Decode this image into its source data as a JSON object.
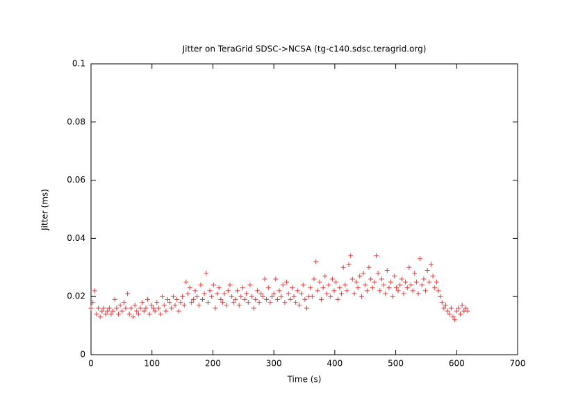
{
  "chart_data": {
    "type": "scatter",
    "title": "Jitter on TeraGrid SDSC->NCSA (tg-c140.sdsc.teragrid.org)",
    "xlabel": "Time (s)",
    "ylabel": "Jitter (ms)",
    "xlim": [
      0,
      700
    ],
    "xticks": [
      0,
      100,
      200,
      300,
      400,
      500,
      600,
      700
    ],
    "ylim": [
      0,
      0.1
    ],
    "yticks": [
      0,
      0.02,
      0.04,
      0.06,
      0.08,
      0.1
    ],
    "color": "#e03c3c",
    "marker": "+",
    "x": [
      0,
      3,
      6,
      9,
      12,
      15,
      18,
      21,
      24,
      27,
      30,
      33,
      36,
      39,
      42,
      45,
      48,
      51,
      54,
      57,
      60,
      63,
      66,
      69,
      72,
      75,
      78,
      81,
      84,
      87,
      90,
      93,
      96,
      99,
      102,
      105,
      108,
      111,
      114,
      117,
      120,
      123,
      126,
      129,
      132,
      135,
      138,
      141,
      144,
      147,
      150,
      153,
      156,
      159,
      162,
      165,
      168,
      171,
      174,
      177,
      180,
      183,
      186,
      189,
      192,
      195,
      198,
      201,
      204,
      207,
      210,
      213,
      216,
      219,
      222,
      225,
      228,
      231,
      234,
      237,
      240,
      243,
      246,
      249,
      252,
      255,
      258,
      261,
      264,
      267,
      270,
      273,
      276,
      279,
      282,
      285,
      288,
      291,
      294,
      297,
      300,
      303,
      306,
      309,
      312,
      315,
      318,
      321,
      324,
      327,
      330,
      333,
      336,
      339,
      342,
      345,
      348,
      351,
      354,
      357,
      360,
      363,
      366,
      369,
      372,
      375,
      378,
      381,
      384,
      387,
      390,
      393,
      396,
      399,
      402,
      405,
      408,
      411,
      414,
      417,
      420,
      423,
      426,
      429,
      432,
      435,
      438,
      441,
      444,
      447,
      450,
      453,
      456,
      459,
      462,
      465,
      468,
      471,
      474,
      477,
      480,
      483,
      486,
      489,
      492,
      495,
      498,
      501,
      504,
      507,
      510,
      513,
      516,
      519,
      522,
      525,
      528,
      531,
      534,
      537,
      540,
      543,
      546,
      549,
      552,
      555,
      558,
      561,
      564,
      567,
      570,
      573,
      576,
      579,
      582,
      585,
      588,
      591,
      594,
      597,
      600,
      603,
      606,
      609,
      612,
      615,
      618
    ],
    "values": [
      0.016,
      0.018,
      0.022,
      0.014,
      0.016,
      0.013,
      0.015,
      0.016,
      0.014,
      0.015,
      0.016,
      0.014,
      0.015,
      0.019,
      0.016,
      0.014,
      0.017,
      0.015,
      0.018,
      0.016,
      0.021,
      0.014,
      0.016,
      0.013,
      0.017,
      0.015,
      0.014,
      0.016,
      0.018,
      0.015,
      0.016,
      0.019,
      0.014,
      0.017,
      0.016,
      0.015,
      0.018,
      0.016,
      0.014,
      0.02,
      0.017,
      0.015,
      0.019,
      0.018,
      0.016,
      0.02,
      0.017,
      0.019,
      0.015,
      0.018,
      0.02,
      0.017,
      0.025,
      0.021,
      0.023,
      0.018,
      0.019,
      0.022,
      0.02,
      0.017,
      0.024,
      0.019,
      0.021,
      0.028,
      0.018,
      0.022,
      0.02,
      0.024,
      0.016,
      0.021,
      0.023,
      0.019,
      0.018,
      0.021,
      0.017,
      0.022,
      0.024,
      0.02,
      0.018,
      0.019,
      0.022,
      0.017,
      0.02,
      0.023,
      0.019,
      0.021,
      0.018,
      0.024,
      0.02,
      0.016,
      0.019,
      0.022,
      0.018,
      0.021,
      0.02,
      0.026,
      0.019,
      0.023,
      0.018,
      0.02,
      0.021,
      0.026,
      0.019,
      0.022,
      0.02,
      0.024,
      0.018,
      0.025,
      0.021,
      0.019,
      0.023,
      0.02,
      0.018,
      0.022,
      0.017,
      0.021,
      0.024,
      0.019,
      0.016,
      0.02,
      0.023,
      0.02,
      0.026,
      0.032,
      0.022,
      0.025,
      0.019,
      0.023,
      0.027,
      0.021,
      0.024,
      0.02,
      0.026,
      0.022,
      0.025,
      0.019,
      0.023,
      0.021,
      0.03,
      0.024,
      0.022,
      0.031,
      0.034,
      0.026,
      0.021,
      0.025,
      0.023,
      0.027,
      0.02,
      0.028,
      0.024,
      0.022,
      0.03,
      0.026,
      0.023,
      0.025,
      0.034,
      0.028,
      0.022,
      0.026,
      0.024,
      0.021,
      0.029,
      0.023,
      0.025,
      0.02,
      0.027,
      0.023,
      0.022,
      0.024,
      0.026,
      0.021,
      0.025,
      0.023,
      0.03,
      0.024,
      0.022,
      0.028,
      0.025,
      0.021,
      0.033,
      0.024,
      0.026,
      0.022,
      0.029,
      0.025,
      0.031,
      0.027,
      0.023,
      0.025,
      0.022,
      0.02,
      0.018,
      0.016,
      0.017,
      0.015,
      0.014,
      0.016,
      0.013,
      0.012,
      0.015,
      0.016,
      0.014,
      0.017,
      0.015,
      0.016,
      0.015
    ]
  }
}
